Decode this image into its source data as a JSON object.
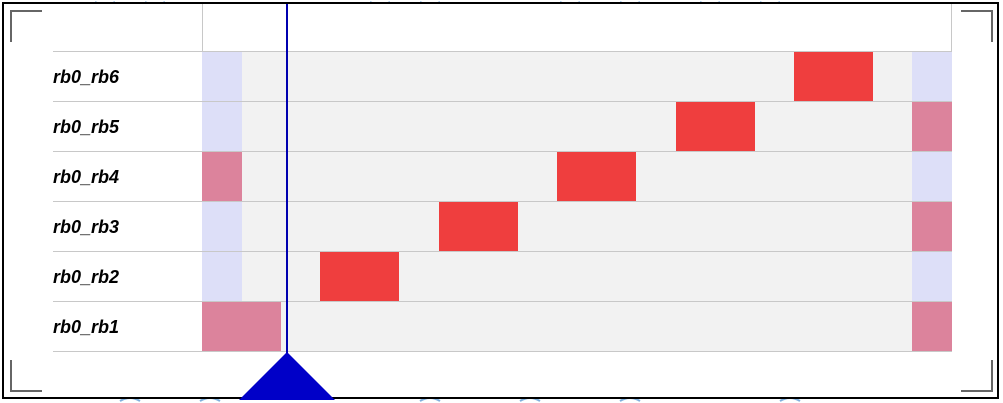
{
  "rows": [
    {
      "label": "rb0_rb6"
    },
    {
      "label": "rb0_rb5"
    },
    {
      "label": "rb0_rb4"
    },
    {
      "label": "rb0_rb3"
    },
    {
      "label": "rb0_rb2"
    },
    {
      "label": "rb0_rb1"
    }
  ],
  "colors": {
    "active_block": "#ef3e3e",
    "left_lavender": "#dddff8",
    "left_pink": "#dc839c",
    "grid_background": "#f2f2f2",
    "cursor": "#0000c8"
  },
  "icons": {
    "cursor_handle": "triangle-up-icon"
  }
}
